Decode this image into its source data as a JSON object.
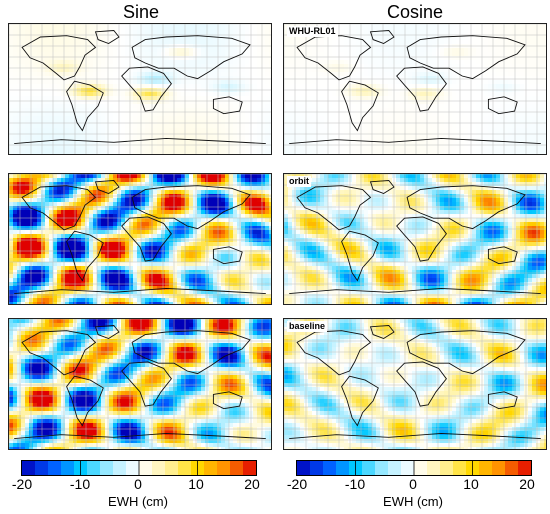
{
  "columns": {
    "left_title": "Sine",
    "right_title": "Cosine"
  },
  "panels": [
    {
      "id": "s1",
      "column": "sine",
      "row": 1,
      "label": "",
      "field": "model",
      "amplitude": 0.45
    },
    {
      "id": "c1",
      "column": "cosine",
      "row": 1,
      "label": "WHU-RL01",
      "field": "model",
      "amplitude": 0.2
    },
    {
      "id": "s2",
      "column": "sine",
      "row": 2,
      "label": "",
      "field": "noise",
      "amplitude": 1.1
    },
    {
      "id": "c2",
      "column": "cosine",
      "row": 2,
      "label": "orbit",
      "field": "noise",
      "amplitude": 0.7
    },
    {
      "id": "s3",
      "column": "sine",
      "row": 3,
      "label": "",
      "field": "noise",
      "amplitude": 0.95
    },
    {
      "id": "c3",
      "column": "cosine",
      "row": 3,
      "label": "baseline",
      "field": "noise",
      "amplitude": 0.55
    }
  ],
  "colorbar": {
    "ticks": [
      "-20",
      "-10",
      "0",
      "10",
      "20"
    ],
    "range": [
      -20,
      20
    ],
    "unit_label": "EWH (cm)",
    "stops": [
      "#0000b8",
      "#0055ff",
      "#00c8ff",
      "#a8ecff",
      "#ffffff",
      "#fff2a0",
      "#ffd800",
      "#ff8a00",
      "#e00000"
    ]
  },
  "colors": {
    "coastline": "#111111",
    "grid": "#bdbdbd",
    "frame": "#222222"
  }
}
